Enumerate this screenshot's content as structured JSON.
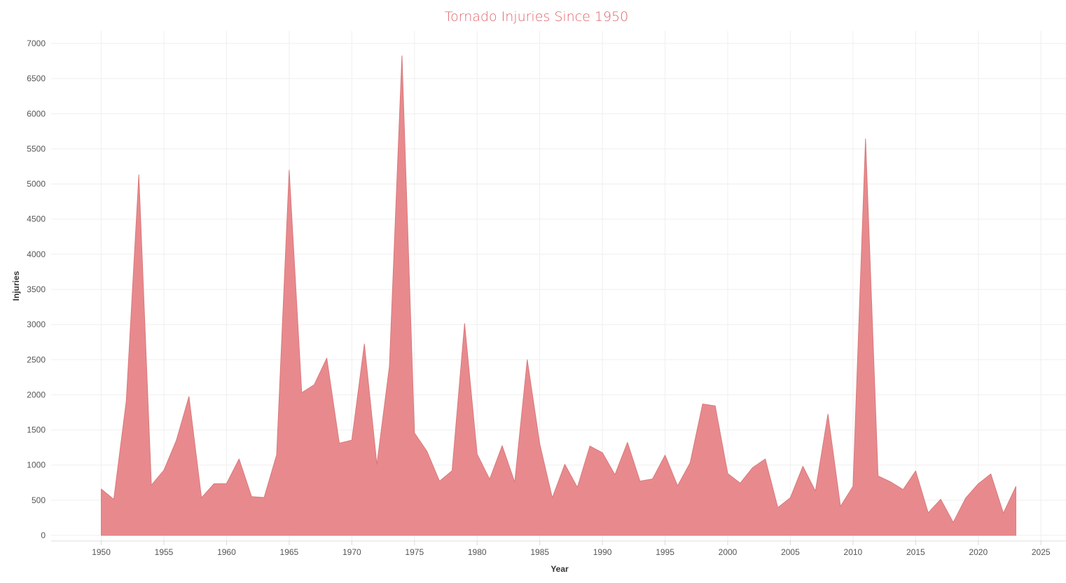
{
  "chart_data": {
    "type": "area",
    "title": "Tornado Injuries Since 1950",
    "xlabel": "Year",
    "ylabel": "Injuries",
    "xlim": [
      1946,
      2027
    ],
    "ylim": [
      -80,
      7180
    ],
    "x_ticks": [
      1950,
      1955,
      1960,
      1965,
      1970,
      1975,
      1980,
      1985,
      1990,
      1995,
      2000,
      2005,
      2010,
      2015,
      2020,
      2025
    ],
    "y_ticks": [
      0,
      500,
      1000,
      1500,
      2000,
      2500,
      3000,
      3500,
      4000,
      4500,
      5000,
      5500,
      6000,
      6500,
      7000
    ],
    "grid": true,
    "legend": "none",
    "colors": {
      "area_fill": "#e88a8d",
      "area_stroke": "#d9787b",
      "title": "#e0636b"
    },
    "series": [
      {
        "x": [
          1950,
          1951,
          1952,
          1953,
          1954,
          1955,
          1956,
          1957,
          1958,
          1959,
          1960,
          1961,
          1962,
          1963,
          1964,
          1965,
          1966,
          1967,
          1968,
          1969,
          1970,
          1971,
          1972,
          1973,
          1974,
          1975,
          1976,
          1977,
          1978,
          1979,
          1980,
          1981,
          1982,
          1983,
          1984,
          1985,
          1986,
          1987,
          1988,
          1989,
          1990,
          1991,
          1992,
          1993,
          1994,
          1995,
          1996,
          1997,
          1998,
          1999,
          2000,
          2001,
          2002,
          2003,
          2004,
          2005,
          2006,
          2007,
          2008,
          2009,
          2010,
          2011,
          2012,
          2013,
          2014,
          2015,
          2016,
          2017,
          2018,
          2019,
          2020,
          2021,
          2022,
          2023
        ],
        "values": [
          659,
          512,
          1915,
          5131,
          715,
          926,
          1355,
          1976,
          535,
          734,
          737,
          1087,
          551,
          538,
          1148,
          5197,
          2030,
          2144,
          2522,
          1311,
          1355,
          2723,
          1009,
          2406,
          6824,
          1457,
          1195,
          771,
          919,
          3014,
          1157,
          798,
          1276,
          756,
          2499,
          1299,
          534,
          1011,
          683,
          1271,
          1176,
          863,
          1322,
          771,
          803,
          1141,
          705,
          1032,
          1870,
          1842,
          880,
          743,
          966,
          1087,
          395,
          536,
          983,
          630,
          1725,
          412,
          698,
          5643,
          845,
          761,
          651,
          917,
          321,
          514,
          185,
          533,
          734,
          874,
          316,
          695
        ]
      }
    ]
  }
}
